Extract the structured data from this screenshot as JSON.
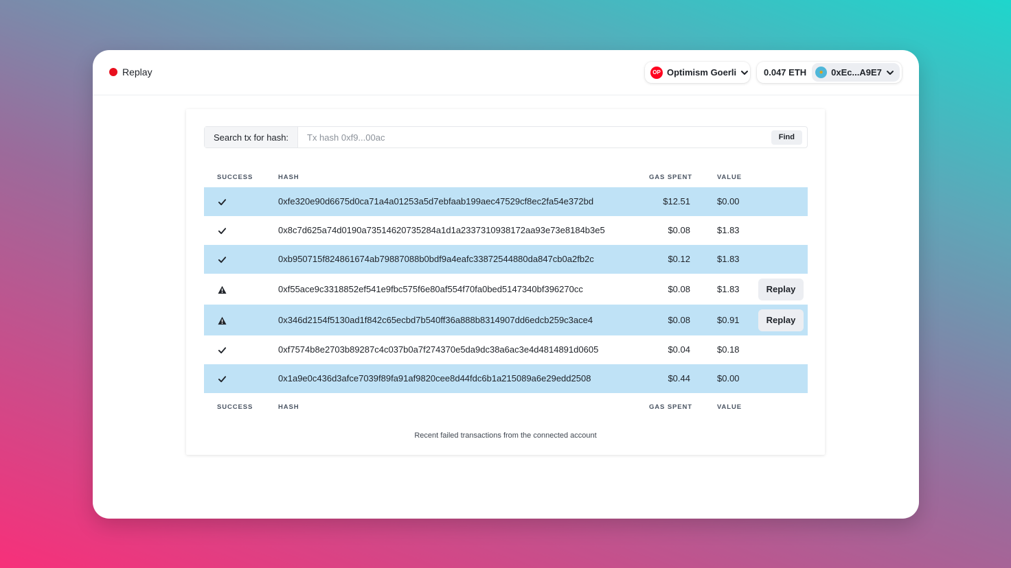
{
  "app": {
    "name": "Replay",
    "dot_color": "#e8101e"
  },
  "network": {
    "badge": "OP",
    "label": "Optimism Goerli"
  },
  "account": {
    "balance": "0.047 ETH",
    "address": "0xEc...A9E7"
  },
  "search": {
    "label": "Search tx for hash:",
    "placeholder": "Tx hash 0xf9...00ac",
    "find_label": "Find"
  },
  "table": {
    "headers": {
      "success": "SUCCESS",
      "hash": "HASH",
      "gas": "GAS SPENT",
      "value": "VALUE"
    },
    "rows": [
      {
        "status": "success",
        "hash": "0xfe320e90d6675d0ca71a4a01253a5d7ebfaab199aec47529cf8ec2fa54e372bd",
        "gas": "$12.51",
        "value": "$0.00"
      },
      {
        "status": "success",
        "hash": "0x8c7d625a74d0190a73514620735284a1d1a2337310938172aa93e73e8184b3e5",
        "gas": "$0.08",
        "value": "$1.83"
      },
      {
        "status": "success",
        "hash": "0xb950715f824861674ab79887088b0bdf9a4eafc33872544880da847cb0a2fb2c",
        "gas": "$0.12",
        "value": "$1.83"
      },
      {
        "status": "failed",
        "hash": "0xf55ace9c3318852ef541e9fbc575f6e80af554f70fa0bed5147340bf396270cc",
        "gas": "$0.08",
        "value": "$1.83",
        "action": "Replay"
      },
      {
        "status": "failed",
        "hash": "0x346d2154f5130ad1f842c65ecbd7b540ff36a888b8314907dd6edcb259c3ace4",
        "gas": "$0.08",
        "value": "$0.91",
        "action": "Replay"
      },
      {
        "status": "success",
        "hash": "0xf7574b8e2703b89287c4c037b0a7f274370e5da9dc38a6ac3e4d4814891d0605",
        "gas": "$0.04",
        "value": "$0.18"
      },
      {
        "status": "success",
        "hash": "0x1a9e0c436d3afce7039f89fa91af9820cee8d44fdc6b1a215089a6e29edd2508",
        "gas": "$0.44",
        "value": "$0.00"
      }
    ]
  },
  "footer_note": "Recent failed transactions from the connected account",
  "colors": {
    "stripe": "#bfe2f6",
    "op_red": "#ff0420"
  }
}
